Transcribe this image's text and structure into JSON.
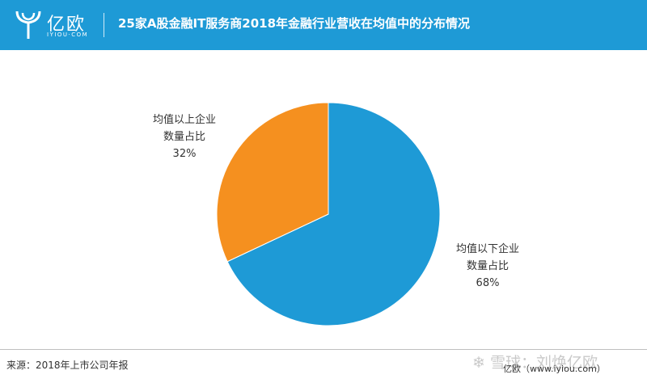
{
  "header": {
    "logo_text": "亿欧",
    "logo_sub": "IYIOU·COM",
    "title": "25家A股金融IT服务商2018年金融行业营收在均值中的分布情况",
    "background": "#1e9ad6"
  },
  "chart_data": {
    "type": "pie",
    "slices": [
      {
        "label_line1": "均值以下企业",
        "label_line2": "数量占比",
        "value": 68,
        "value_text": "68%",
        "color": "#1e9ad6"
      },
      {
        "label_line1": "均值以上企业",
        "label_line2": "数量占比",
        "value": 32,
        "value_text": "32%",
        "color": "#f5901f"
      }
    ]
  },
  "footer": {
    "source": "来源：2018年上市公司年报",
    "watermark": "❄ 雪球：刘焕亿欧",
    "brand": "亿欧（www.iyiou.com）"
  }
}
